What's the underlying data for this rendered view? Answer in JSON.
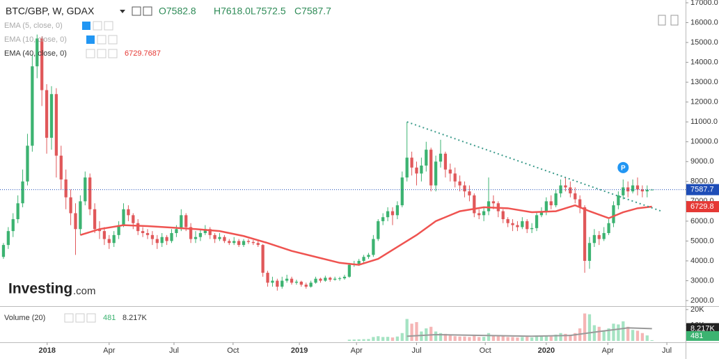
{
  "header": {
    "title": "BTC/GBP, W, GDAX",
    "ohlc": [
      "O7582.8",
      "H7618.0",
      "L7572.5",
      "C7587.7"
    ],
    "indicators": [
      {
        "name": "EMA (5, close, 0)"
      },
      {
        "name": "EMA (10, close, 0)"
      },
      {
        "name": "EMA (40, close, 0)",
        "value": "6729.7687"
      }
    ],
    "volume_name": "Volume (20)",
    "volume_last": "481",
    "volume_ma": "8.217K"
  },
  "logo": "Investing",
  "logo_suffix": ".com",
  "chart_data": {
    "type": "candlestick",
    "up_color": "#3cb371",
    "down_color": "#e0585a",
    "xlim": [
      -0.72,
      142
    ],
    "ylim": [
      1720,
      17140
    ],
    "xticks": [
      {
        "value": 9.1,
        "label": "2018"
      },
      {
        "value": 22,
        "label": "Apr"
      },
      {
        "value": 35.5,
        "label": "Jul"
      },
      {
        "value": 47.8,
        "label": "Oct"
      },
      {
        "value": 61.6,
        "label": "2019"
      },
      {
        "value": 73.5,
        "label": "Apr"
      },
      {
        "value": 86,
        "label": "Jul"
      },
      {
        "value": 100.3,
        "label": "Oct"
      },
      {
        "value": 113,
        "label": "2020"
      },
      {
        "value": 125.8,
        "label": "Apr"
      },
      {
        "value": 138.1,
        "label": "Jul"
      }
    ],
    "yticks": [
      {
        "value": 2000,
        "label": "2000.0"
      },
      {
        "value": 3000,
        "label": "3000.0"
      },
      {
        "value": 4000,
        "label": "4000.0"
      },
      {
        "value": 5000,
        "label": "5000.0"
      },
      {
        "value": 6000,
        "label": "6000.0"
      },
      {
        "value": 7000,
        "label": "7000.0"
      },
      {
        "value": 8000,
        "label": "8000.0"
      },
      {
        "value": 9000,
        "label": "9000.0"
      },
      {
        "value": 10000,
        "label": "10000.0"
      },
      {
        "value": 11000,
        "label": "11000.0"
      },
      {
        "value": 12000,
        "label": "12000.0"
      },
      {
        "value": 13000,
        "label": "13000.0"
      },
      {
        "value": 14000,
        "label": "14000.0"
      },
      {
        "value": 15000,
        "label": "15000.0"
      },
      {
        "value": 16000,
        "label": "16000.0"
      },
      {
        "value": 17000,
        "label": "17000.0"
      }
    ],
    "open": [
      4200,
      4800,
      5500,
      6100,
      6900,
      8000,
      9800,
      13800,
      15200,
      12600,
      10200,
      12400,
      9300,
      8100,
      7200,
      6400,
      5600,
      7000,
      8200,
      6600,
      5600,
      5500,
      5100,
      4900,
      5300,
      5800,
      6600,
      6300,
      5900,
      5500,
      5400,
      5300,
      5100,
      4900,
      5200,
      5000,
      5400,
      5600,
      6300,
      5700,
      5100,
      5200,
      5400,
      5600,
      5300,
      5100,
      5200,
      5000,
      4900,
      5000,
      4800,
      5000,
      4950,
      4900,
      4800,
      3400,
      2900,
      3000,
      2700,
      3000,
      3100,
      2900,
      2950,
      2800,
      2700,
      2900,
      3100,
      3000,
      3150,
      3050,
      3100,
      3120,
      3200,
      3800,
      3850,
      4000,
      4200,
      4300,
      5100,
      6000,
      6200,
      6500,
      6300,
      6800,
      8200,
      9200,
      8700,
      8400,
      8800,
      9600,
      7800,
      9000,
      9400,
      8600,
      8400,
      8000,
      7800,
      7500,
      7300,
      6400,
      6300,
      6500,
      7000,
      6900,
      6500,
      6100,
      5900,
      5800,
      5700,
      6000,
      5600,
      5650,
      6300,
      6500,
      7000,
      6800,
      7400,
      7800,
      7700,
      7400,
      7100,
      6700,
      4000,
      4900,
      5300,
      5100,
      5400,
      5900,
      6800,
      7300,
      7700,
      7500,
      7800,
      7600,
      7500,
      7582.8
    ],
    "high": [
      4900,
      5700,
      6400,
      7300,
      8600,
      10400,
      14400,
      15400,
      15300,
      12900,
      12800,
      12700,
      9800,
      8600,
      7600,
      6900,
      7300,
      8500,
      8400,
      6900,
      6000,
      5700,
      5300,
      5500,
      6000,
      6900,
      6800,
      6400,
      6100,
      5700,
      5600,
      5500,
      5300,
      5400,
      5300,
      5600,
      5800,
      6600,
      6400,
      5900,
      5500,
      5600,
      5800,
      5700,
      5400,
      5400,
      5300,
      5100,
      5200,
      5100,
      5100,
      5100,
      5050,
      5000,
      4850,
      3500,
      3200,
      3100,
      3200,
      3300,
      3200,
      3050,
      3000,
      2900,
      3000,
      3200,
      3150,
      3250,
      3200,
      3200,
      3200,
      3300,
      3900,
      4000,
      4100,
      4300,
      4400,
      5300,
      6100,
      6400,
      6700,
      6700,
      7000,
      8500,
      11000,
      9500,
      9000,
      9200,
      10000,
      9700,
      9300,
      10100,
      9500,
      8900,
      8700,
      8300,
      8000,
      7800,
      7400,
      6600,
      6700,
      8200,
      7300,
      7000,
      6600,
      6200,
      6100,
      6000,
      6200,
      6100,
      5900,
      6500,
      6700,
      7200,
      7300,
      7600,
      8100,
      8200,
      8000,
      7700,
      7300,
      6800,
      5200,
      5600,
      5500,
      5700,
      6100,
      7000,
      7500,
      8100,
      8000,
      8100,
      8200,
      7800,
      7800,
      7618
    ],
    "low": [
      4100,
      4600,
      5200,
      5900,
      6700,
      7800,
      9500,
      13200,
      11800,
      9400,
      9600,
      8200,
      7600,
      6600,
      5800,
      4300,
      5300,
      6800,
      6300,
      5400,
      5100,
      4800,
      4600,
      4700,
      5100,
      5700,
      6000,
      5600,
      5300,
      5200,
      5100,
      4800,
      4600,
      4700,
      4800,
      4900,
      5200,
      5500,
      5500,
      4900,
      4900,
      5000,
      5300,
      5100,
      4900,
      5000,
      4900,
      4800,
      4800,
      4700,
      4700,
      4850,
      4800,
      4700,
      3200,
      2700,
      2700,
      2500,
      2600,
      2900,
      2800,
      2800,
      2700,
      2600,
      2650,
      2850,
      2900,
      2950,
      2950,
      3000,
      3000,
      3050,
      3150,
      3700,
      3750,
      3900,
      4100,
      4200,
      5000,
      5800,
      6000,
      5800,
      6100,
      6700,
      8000,
      8300,
      7800,
      8000,
      8500,
      7500,
      7500,
      8700,
      8200,
      8000,
      7700,
      7500,
      7200,
      7000,
      6200,
      6100,
      6000,
      6300,
      6600,
      6200,
      5900,
      5700,
      5500,
      5500,
      5600,
      5400,
      5400,
      5500,
      6200,
      6300,
      6600,
      6700,
      7200,
      7500,
      7200,
      6900,
      6400,
      3400,
      3600,
      4700,
      4800,
      5000,
      5300,
      5700,
      6600,
      7100,
      7200,
      7400,
      7300,
      7200,
      7200,
      7572.5
    ],
    "close": [
      4800,
      5500,
      6100,
      6900,
      8000,
      9800,
      13800,
      15200,
      12600,
      10200,
      12400,
      9300,
      8100,
      7200,
      6400,
      5600,
      7000,
      8200,
      6600,
      5600,
      5500,
      5100,
      4900,
      5300,
      5800,
      6600,
      6300,
      5900,
      5500,
      5400,
      5300,
      5100,
      4900,
      5200,
      5000,
      5400,
      5600,
      6300,
      5700,
      5100,
      5200,
      5400,
      5600,
      5300,
      5100,
      5200,
      5000,
      4900,
      5000,
      4800,
      5000,
      4950,
      4900,
      4800,
      3400,
      2900,
      3000,
      2700,
      3000,
      3100,
      2900,
      2950,
      2800,
      2700,
      2900,
      3100,
      3000,
      3150,
      3050,
      3100,
      3120,
      3200,
      3800,
      3850,
      4000,
      4200,
      4300,
      5100,
      6000,
      6200,
      6500,
      6300,
      6800,
      8200,
      9200,
      8700,
      8400,
      8800,
      9600,
      7800,
      9000,
      9400,
      8600,
      8400,
      8000,
      7800,
      7500,
      7300,
      6400,
      6300,
      6500,
      7000,
      6900,
      6500,
      6100,
      5900,
      5800,
      5700,
      6000,
      5600,
      5650,
      6300,
      6500,
      7000,
      6800,
      7400,
      7800,
      7700,
      7400,
      7100,
      6700,
      4000,
      4900,
      5300,
      5100,
      5400,
      5900,
      6800,
      7300,
      7700,
      7500,
      7800,
      7600,
      7500,
      7582.8,
      7587.7
    ],
    "price_label": "7587.7",
    "ema": {
      "color": "#ef5350",
      "x": [
        16,
        20,
        25,
        30,
        40,
        45,
        50,
        55,
        60,
        65,
        70,
        74,
        78,
        82,
        86,
        90,
        95,
        100,
        105,
        110,
        115,
        119,
        122,
        126,
        129,
        132,
        135
      ],
      "values": [
        5300,
        5600,
        5800,
        5750,
        5600,
        5500,
        5250,
        4900,
        4500,
        4200,
        3900,
        3800,
        4100,
        4700,
        5300,
        6000,
        6500,
        6700,
        6650,
        6450,
        6500,
        6800,
        6500,
        6150,
        6450,
        6650,
        6729.7687
      ],
      "price_label": "6729.8"
    },
    "trendline": {
      "x": [
        84,
        137
      ],
      "values": [
        11000,
        6500
      ]
    },
    "marker": {
      "text": "P",
      "x": 129,
      "value": 8700
    },
    "volume": {
      "ylim": [
        0,
        21300
      ],
      "yticks": [
        {
          "value": 10000,
          "label": "10K"
        },
        {
          "value": 20000,
          "label": "20K"
        }
      ],
      "x": [
        72,
        73,
        74,
        75,
        76,
        77,
        78,
        79,
        80,
        81,
        82,
        83,
        84,
        85,
        86,
        87,
        88,
        89,
        90,
        91,
        92,
        93,
        94,
        95,
        96,
        97,
        98,
        99,
        100,
        101,
        102,
        103,
        104,
        105,
        106,
        107,
        108,
        109,
        110,
        111,
        112,
        113,
        114,
        115,
        116,
        117,
        118,
        119,
        120,
        121,
        122,
        123,
        124,
        125,
        126,
        127,
        128,
        129,
        130,
        131,
        132,
        133,
        134,
        135
      ],
      "values": [
        800,
        900,
        1000,
        1100,
        1200,
        2500,
        3000,
        2500,
        2600,
        2200,
        2800,
        5000,
        14000,
        11000,
        12000,
        6000,
        8000,
        9000,
        6000,
        5000,
        4500,
        3500,
        3000,
        2800,
        2800,
        2500,
        4000,
        2500,
        2600,
        5000,
        3500,
        3000,
        3000,
        2500,
        2500,
        2200,
        2500,
        2600,
        2200,
        3500,
        3000,
        3500,
        2800,
        4000,
        5000,
        4500,
        4000,
        5000,
        8000,
        17500,
        17000,
        10000,
        9000,
        6000,
        8000,
        11000,
        10500,
        12500,
        9000,
        7000,
        6500,
        5000,
        3500,
        481
      ],
      "ma": {
        "x": [
          84,
          90,
          100,
          110,
          118,
          124,
          130,
          135
        ],
        "values": [
          3000,
          4000,
          3500,
          3000,
          3500,
          6000,
          8300,
          7800
        ]
      },
      "ma_label": "8.217K",
      "last_label": "481"
    }
  }
}
